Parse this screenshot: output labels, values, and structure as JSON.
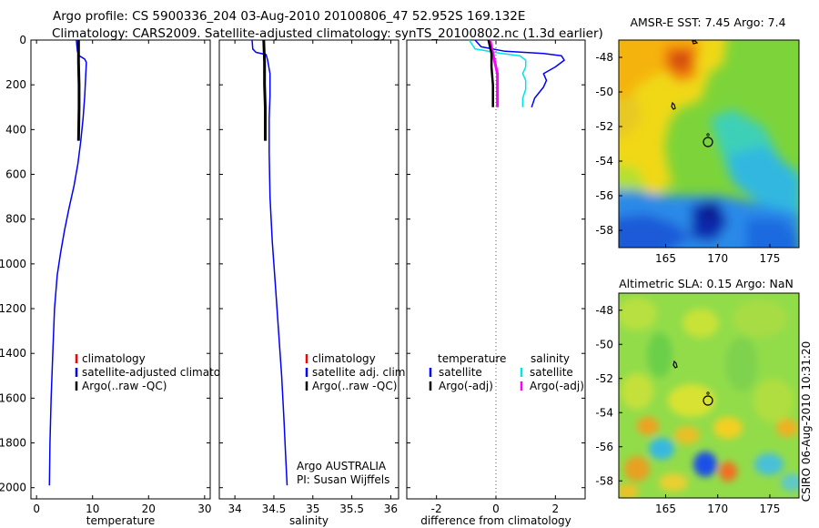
{
  "header": {
    "line1": "Argo profile: CS 5900336_204 03-Aug-2010 20100806_47 52.952S 169.132E",
    "line2": "Climatology: CARS2009. Satellite-adjusted climatology: synTS_20100802.nc (1.3d earlier)"
  },
  "side_label": "CSIRO 06-Aug-2010 10:31:20",
  "colors": {
    "climatology": "#ff0000",
    "satellite": "#0000ff",
    "argo": "#000000",
    "satellite_salinity": "#00e5e5",
    "argo_adj_salinity": "#ff00ff",
    "zero_line": "#555555"
  },
  "chart_data": [
    {
      "id": "temperature",
      "type": "line",
      "xlabel": "temperature",
      "ylabel": "",
      "xlim": [
        -1,
        31
      ],
      "ylim": [
        2050,
        0
      ],
      "xticks": [
        0,
        10,
        20,
        30
      ],
      "yticks": [
        0,
        200,
        400,
        600,
        800,
        1000,
        1200,
        1400,
        1600,
        1800,
        2000
      ],
      "legend": {
        "placement": "lower-right",
        "entries": [
          {
            "label": "climatology",
            "color": "#ff0000"
          },
          {
            "label": "satellite-adjusted climatology",
            "color": "#0000ff"
          },
          {
            "label": "Argo(..raw -QC)",
            "color": "#000000"
          }
        ]
      },
      "series": [
        {
          "key": "satellite",
          "color": "#0000ff",
          "width": 1.5,
          "x": [
            7.1,
            7.3,
            7.6,
            8.6,
            8.9,
            8.8,
            8.6,
            8.3,
            7.9,
            7.4,
            6.7,
            5.8,
            5.0,
            4.3,
            3.7,
            3.2,
            2.9,
            2.6,
            2.4,
            2.3
          ],
          "y": [
            0,
            50,
            70,
            85,
            100,
            150,
            250,
            350,
            450,
            550,
            650,
            750,
            850,
            950,
            1050,
            1200,
            1400,
            1600,
            1800,
            1990
          ]
        },
        {
          "key": "argo",
          "color": "#000000",
          "width": 3,
          "x": [
            7.5,
            7.5,
            7.6,
            7.6,
            7.5
          ],
          "y": [
            0,
            100,
            200,
            300,
            450
          ]
        }
      ]
    },
    {
      "id": "salinity",
      "type": "line",
      "xlabel": "salinity",
      "ylabel": "",
      "xlim": [
        33.8,
        36.1
      ],
      "ylim": [
        2050,
        0
      ],
      "xticks": [
        34,
        34.5,
        35,
        35.5,
        36
      ],
      "yticks": [
        0,
        200,
        400,
        600,
        800,
        1000,
        1200,
        1400,
        1600,
        1800,
        2000
      ],
      "legend": {
        "placement": "lower-right",
        "entries": [
          {
            "label": "climatology",
            "color": "#ff0000"
          },
          {
            "label": "satellite adj. clim.",
            "color": "#0000ff"
          },
          {
            "label": "Argo(..raw -QC)",
            "color": "#000000"
          }
        ]
      },
      "annotation": [
        "Argo AUSTRALIA",
        "PI: Susan Wijffels"
      ],
      "series": [
        {
          "key": "satellite",
          "color": "#0000ff",
          "width": 1.5,
          "x": [
            34.22,
            34.23,
            34.27,
            34.4,
            34.42,
            34.45,
            34.45,
            34.44,
            34.44,
            34.45,
            34.48,
            34.52,
            34.56,
            34.6,
            34.63,
            34.65,
            34.67
          ],
          "y": [
            0,
            40,
            55,
            65,
            90,
            150,
            250,
            350,
            500,
            700,
            900,
            1100,
            1300,
            1500,
            1700,
            1850,
            1990
          ]
        },
        {
          "key": "argo",
          "color": "#000000",
          "width": 3,
          "x": [
            34.37,
            34.38,
            34.38,
            34.39,
            34.39
          ],
          "y": [
            0,
            100,
            200,
            300,
            450
          ]
        }
      ]
    },
    {
      "id": "difference",
      "type": "line",
      "xlabel": "difference from climatology",
      "ylabel": "",
      "xlim": [
        -3,
        3
      ],
      "ylim": [
        2050,
        0
      ],
      "xticks": [
        -2,
        0,
        2
      ],
      "yticks": [
        0,
        200,
        400,
        600,
        800,
        1000,
        1200,
        1400,
        1600,
        1800,
        2000
      ],
      "legend": {
        "placement": "lower-left",
        "headers": [
          "temperature",
          "salinity"
        ],
        "entries": [
          {
            "label": "satellite",
            "color": "#0000ff"
          },
          {
            "label": "Argo(-adj)",
            "color": "#000000"
          },
          {
            "label": "satellite",
            "color": "#00e5e5"
          },
          {
            "label": "Argo(-adj)",
            "color": "#ff00ff"
          }
        ]
      },
      "series": [
        {
          "key": "sat_temp",
          "color": "#0000ff",
          "width": 1.5,
          "x": [
            -0.7,
            -0.5,
            0.3,
            1.6,
            2.2,
            2.3,
            2.0,
            1.6,
            1.7,
            1.6,
            1.3,
            1.2
          ],
          "y": [
            0,
            30,
            50,
            60,
            70,
            90,
            120,
            150,
            180,
            210,
            260,
            300
          ]
        },
        {
          "key": "sat_sal",
          "color": "#00e5e5",
          "width": 1.5,
          "x": [
            -0.9,
            -0.7,
            0.2,
            0.8,
            1.0,
            1.0,
            0.9,
            1.0,
            1.0,
            0.9,
            0.9
          ],
          "y": [
            0,
            40,
            60,
            70,
            90,
            120,
            150,
            180,
            220,
            260,
            300
          ]
        },
        {
          "key": "argo_sal",
          "color": "#ff00ff",
          "width": 3,
          "x": [
            -0.2,
            -0.1,
            0.05,
            0.05,
            0.05
          ],
          "y": [
            0,
            60,
            150,
            250,
            300
          ]
        },
        {
          "key": "argo_temp",
          "color": "#000000",
          "width": 2.5,
          "x": [
            -0.25,
            -0.15,
            -0.15,
            -0.1,
            -0.1,
            -0.1
          ],
          "y": [
            0,
            60,
            120,
            200,
            260,
            300
          ]
        }
      ],
      "zero_line": true
    }
  ],
  "maps": [
    {
      "id": "sst",
      "title": "AMSR-E SST: 7.45 Argo: 7.4",
      "xticks": [
        165,
        170,
        175
      ],
      "yticks": [
        -48,
        -50,
        -52,
        -54,
        -56,
        -58
      ],
      "lon_range": [
        160.5,
        177.8
      ],
      "lat_range": [
        -59,
        -47
      ]
    },
    {
      "id": "sla",
      "title": "Altimetric SLA: 0.15 Argo: NaN",
      "xticks": [
        165,
        170,
        175
      ],
      "yticks": [
        -48,
        -50,
        -52,
        -54,
        -56,
        -58
      ],
      "lon_range": [
        160.5,
        177.8
      ],
      "lat_range": [
        -59,
        -47
      ]
    }
  ]
}
